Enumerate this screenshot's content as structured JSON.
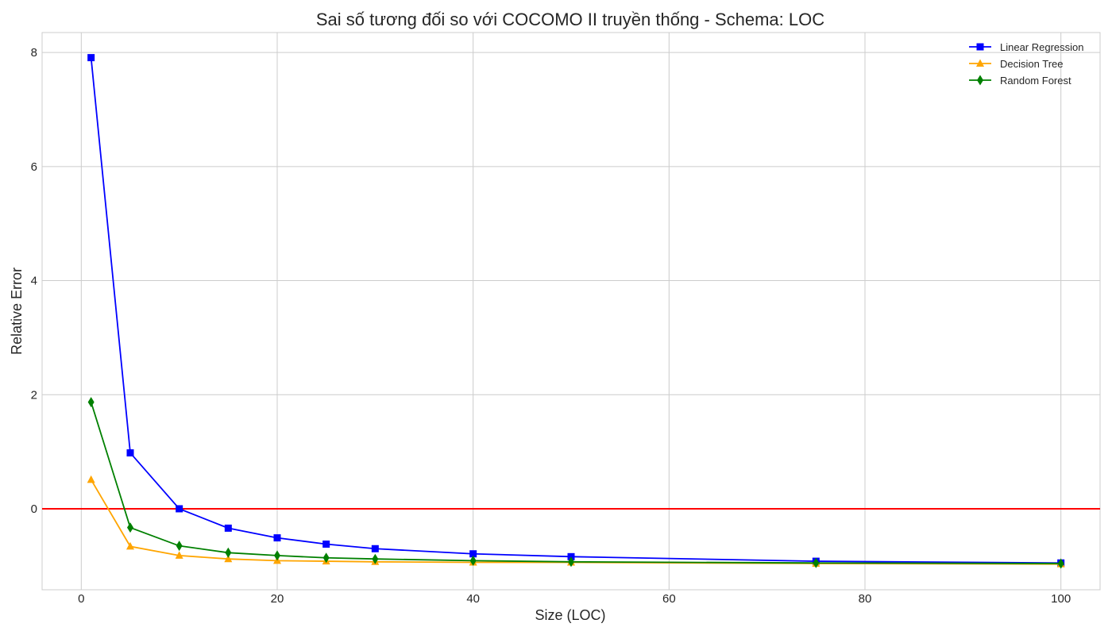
{
  "chart_data": {
    "type": "line",
    "title": "Sai số tương đối so với COCOMO II truyền thống - Schema: LOC",
    "xlabel": "Size (LOC)",
    "ylabel": "Relative Error",
    "xlim": [
      -4,
      104
    ],
    "ylim": [
      -1.42,
      8.35
    ],
    "xticks": [
      0,
      20,
      40,
      60,
      80,
      100
    ],
    "yticks": [
      0,
      2,
      4,
      6,
      8
    ],
    "grid": true,
    "legend_position": "top-right",
    "reference_line": {
      "y": 0,
      "color": "#ff0000"
    },
    "x": [
      1,
      5,
      10,
      15,
      20,
      25,
      30,
      40,
      50,
      75,
      100
    ],
    "series": [
      {
        "name": "Linear Regression",
        "color": "#0000ff",
        "marker": "square",
        "values": [
          7.91,
          0.98,
          0.0,
          -0.34,
          -0.51,
          -0.62,
          -0.7,
          -0.79,
          -0.84,
          -0.92,
          -0.95
        ]
      },
      {
        "name": "Decision Tree",
        "color": "#ffa500",
        "marker": "triangle",
        "values": [
          0.51,
          -0.66,
          -0.82,
          -0.88,
          -0.91,
          -0.92,
          -0.93,
          -0.94,
          -0.94,
          -0.96,
          -0.97
        ]
      },
      {
        "name": "Random Forest",
        "color": "#008000",
        "marker": "diamond",
        "values": [
          1.87,
          -0.33,
          -0.65,
          -0.77,
          -0.82,
          -0.86,
          -0.88,
          -0.91,
          -0.93,
          -0.95,
          -0.96
        ]
      }
    ]
  }
}
